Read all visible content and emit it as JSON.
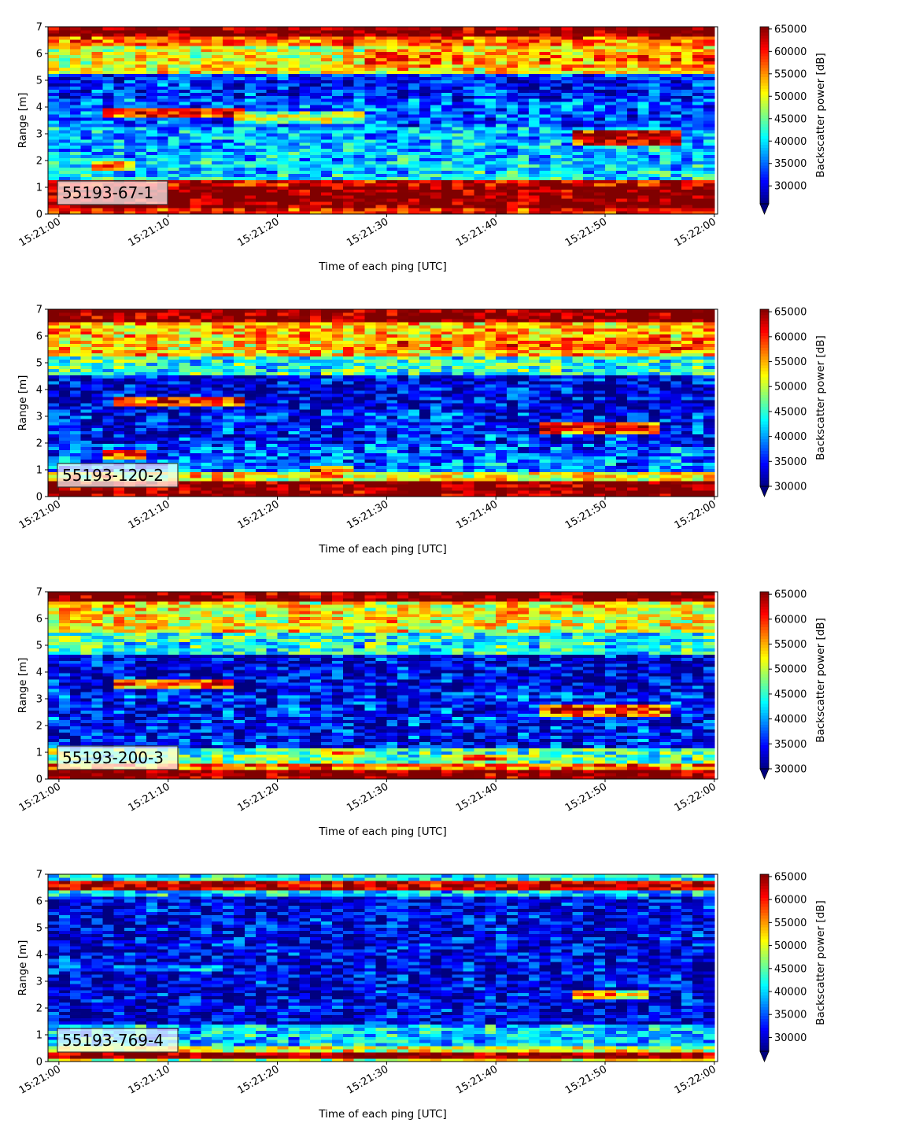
{
  "colors": {
    "colormap": "jet",
    "axis": "#000000",
    "label_box_edge": "#333333"
  },
  "chart_data": [
    {
      "type": "heatmap",
      "panel_label": "55193-67-1",
      "xlabel": "Time of each ping [UTC]",
      "ylabel": "Range [m]",
      "colorbar_label": "Backscatter power [dB]",
      "x_ticks": [
        "15:21:00",
        "15:21:10",
        "15:21:20",
        "15:21:30",
        "15:21:40",
        "15:21:50",
        "15:22:00"
      ],
      "y_ticks": [
        "0",
        "1",
        "2",
        "3",
        "4",
        "5",
        "6",
        "7"
      ],
      "colorbar_ticks": [
        "30000",
        "35000",
        "40000",
        "45000",
        "50000",
        "55000",
        "60000",
        "65000"
      ],
      "xlim": [
        "15:20:59",
        "15:22:00.3"
      ],
      "ylim": [
        0,
        7
      ],
      "clim": [
        26000,
        65500
      ],
      "colorbar_extend": "min",
      "pings": 61,
      "bins": 60,
      "features": [
        {
          "kind": "band",
          "r0": 0.0,
          "r1": 0.2,
          "level": 60000
        },
        {
          "kind": "band",
          "r0": 0.2,
          "r1": 1.1,
          "level": 66000
        },
        {
          "kind": "band",
          "r0": 1.1,
          "r1": 1.3,
          "level": 61000
        },
        {
          "kind": "band",
          "r0": 1.3,
          "r1": 2.0,
          "level": 40000
        },
        {
          "kind": "band",
          "r0": 2.0,
          "r1": 3.3,
          "level": 38000
        },
        {
          "kind": "band",
          "r0": 3.3,
          "r1": 4.3,
          "level": 34000
        },
        {
          "kind": "band",
          "r0": 4.3,
          "r1": 5.3,
          "level": 32000
        },
        {
          "kind": "band",
          "r0": 5.3,
          "r1": 6.3,
          "level": 50000
        },
        {
          "kind": "band",
          "r0": 6.3,
          "r1": 6.7,
          "level": 57000
        },
        {
          "kind": "band",
          "r0": 6.7,
          "r1": 7.0,
          "level": 66000
        },
        {
          "kind": "streak",
          "t0": 5,
          "t1": 17,
          "r": 3.8,
          "w": 0.22,
          "level": 62000
        },
        {
          "kind": "streak",
          "t0": 17,
          "t1": 28,
          "r": 3.6,
          "w": 0.2,
          "level": 50000
        },
        {
          "kind": "streak",
          "t0": 4,
          "t1": 7,
          "r": 1.8,
          "w": 0.2,
          "level": 58000
        },
        {
          "kind": "streak",
          "t0": 48,
          "t1": 57,
          "r": 2.9,
          "w": 0.3,
          "level": 66000
        },
        {
          "kind": "streak",
          "t0": 29,
          "t1": 61,
          "r": 5.8,
          "w": 0.45,
          "level": 57000
        }
      ]
    },
    {
      "type": "heatmap",
      "panel_label": "55193-120-2",
      "xlabel": "Time of each ping [UTC]",
      "ylabel": "Range [m]",
      "colorbar_label": "Backscatter power [dB]",
      "x_ticks": [
        "15:21:00",
        "15:21:10",
        "15:21:20",
        "15:21:30",
        "15:21:40",
        "15:21:50",
        "15:22:00"
      ],
      "y_ticks": [
        "0",
        "1",
        "2",
        "3",
        "4",
        "5",
        "6",
        "7"
      ],
      "colorbar_ticks": [
        "30000",
        "35000",
        "40000",
        "45000",
        "50000",
        "55000",
        "60000",
        "65000"
      ],
      "xlim": [
        "15:20:59",
        "15:22:00.3"
      ],
      "ylim": [
        0,
        7
      ],
      "clim": [
        30000,
        65500
      ],
      "colorbar_extend": "min",
      "pings": 61,
      "bins": 60,
      "features": [
        {
          "kind": "band",
          "r0": 0.0,
          "r1": 0.6,
          "level": 66000
        },
        {
          "kind": "band",
          "r0": 0.6,
          "r1": 0.9,
          "level": 52000
        },
        {
          "kind": "band",
          "r0": 0.9,
          "r1": 2.0,
          "level": 38000
        },
        {
          "kind": "band",
          "r0": 2.0,
          "r1": 3.3,
          "level": 35000
        },
        {
          "kind": "band",
          "r0": 3.3,
          "r1": 4.5,
          "level": 33000
        },
        {
          "kind": "band",
          "r0": 4.5,
          "r1": 5.3,
          "level": 44000
        },
        {
          "kind": "band",
          "r0": 5.3,
          "r1": 6.5,
          "level": 54000
        },
        {
          "kind": "band",
          "r0": 6.5,
          "r1": 7.0,
          "level": 66000
        },
        {
          "kind": "streak",
          "t0": 6,
          "t1": 17,
          "r": 3.6,
          "w": 0.18,
          "level": 62000
        },
        {
          "kind": "streak",
          "t0": 5,
          "t1": 8,
          "r": 1.6,
          "w": 0.18,
          "level": 60000
        },
        {
          "kind": "streak",
          "t0": 45,
          "t1": 55,
          "r": 2.6,
          "w": 0.22,
          "level": 63000
        },
        {
          "kind": "streak",
          "t0": 24,
          "t1": 27,
          "r": 1.0,
          "w": 0.15,
          "level": 60000
        },
        {
          "kind": "streak",
          "t0": 32,
          "t1": 61,
          "r": 5.7,
          "w": 0.5,
          "level": 58000
        }
      ]
    },
    {
      "type": "heatmap",
      "panel_label": "55193-200-3",
      "xlabel": "Time of each ping [UTC]",
      "ylabel": "Range [m]",
      "colorbar_label": "Backscatter power [dB]",
      "x_ticks": [
        "15:21:00",
        "15:21:10",
        "15:21:20",
        "15:21:30",
        "15:21:40",
        "15:21:50",
        "15:22:00"
      ],
      "y_ticks": [
        "0",
        "1",
        "2",
        "3",
        "4",
        "5",
        "6",
        "7"
      ],
      "colorbar_ticks": [
        "30000",
        "35000",
        "40000",
        "45000",
        "50000",
        "55000",
        "60000",
        "65000"
      ],
      "xlim": [
        "15:20:59",
        "15:22:00.3"
      ],
      "ylim": [
        0,
        7
      ],
      "clim": [
        30000,
        65500
      ],
      "colorbar_extend": "min",
      "pings": 61,
      "bins": 60,
      "features": [
        {
          "kind": "band",
          "r0": 0.0,
          "r1": 0.3,
          "level": 66000
        },
        {
          "kind": "band",
          "r0": 0.3,
          "r1": 0.6,
          "level": 57000
        },
        {
          "kind": "band",
          "r0": 0.6,
          "r1": 1.2,
          "level": 46000
        },
        {
          "kind": "band",
          "r0": 1.2,
          "r1": 3.3,
          "level": 35000
        },
        {
          "kind": "band",
          "r0": 3.3,
          "r1": 4.7,
          "level": 33000
        },
        {
          "kind": "band",
          "r0": 4.7,
          "r1": 5.5,
          "level": 44000
        },
        {
          "kind": "band",
          "r0": 5.5,
          "r1": 6.6,
          "level": 52000
        },
        {
          "kind": "band",
          "r0": 6.6,
          "r1": 7.0,
          "level": 66000
        },
        {
          "kind": "streak",
          "t0": 6,
          "t1": 16,
          "r": 3.6,
          "w": 0.18,
          "level": 60000
        },
        {
          "kind": "streak",
          "t0": 45,
          "t1": 56,
          "r": 2.6,
          "w": 0.22,
          "level": 63000
        },
        {
          "kind": "streak",
          "t0": 25,
          "t1": 28,
          "r": 1.0,
          "w": 0.15,
          "level": 58000
        },
        {
          "kind": "streak",
          "t0": 38,
          "t1": 41,
          "r": 0.8,
          "w": 0.15,
          "level": 60000
        }
      ]
    },
    {
      "type": "heatmap",
      "panel_label": "55193-769-4",
      "xlabel": "Time of each ping [UTC]",
      "ylabel": "Range [m]",
      "colorbar_label": "Backscatter power [dB]",
      "x_ticks": [
        "15:21:00",
        "15:21:10",
        "15:21:20",
        "15:21:30",
        "15:21:40",
        "15:21:50",
        "15:22:00"
      ],
      "y_ticks": [
        "0",
        "1",
        "2",
        "3",
        "4",
        "5",
        "6",
        "7"
      ],
      "colorbar_ticks": [
        "30000",
        "35000",
        "40000",
        "45000",
        "50000",
        "55000",
        "60000",
        "65000"
      ],
      "xlim": [
        "15:20:59",
        "15:22:00.3"
      ],
      "ylim": [
        0,
        7
      ],
      "clim": [
        27000,
        65500
      ],
      "colorbar_extend": "min",
      "pings": 61,
      "bins": 60,
      "features": [
        {
          "kind": "band",
          "r0": 0.0,
          "r1": 0.1,
          "level": 50000
        },
        {
          "kind": "band",
          "r0": 0.1,
          "r1": 0.3,
          "level": 66000
        },
        {
          "kind": "band",
          "r0": 0.3,
          "r1": 0.6,
          "level": 50000
        },
        {
          "kind": "band",
          "r0": 0.6,
          "r1": 1.4,
          "level": 40000
        },
        {
          "kind": "band",
          "r0": 1.4,
          "r1": 6.2,
          "level": 31000
        },
        {
          "kind": "band",
          "r0": 6.2,
          "r1": 6.45,
          "level": 40000
        },
        {
          "kind": "band",
          "r0": 6.45,
          "r1": 6.8,
          "level": 63000
        },
        {
          "kind": "band",
          "r0": 6.8,
          "r1": 7.0,
          "level": 42000
        },
        {
          "kind": "streak",
          "t0": 48,
          "t1": 54,
          "r": 2.5,
          "w": 0.18,
          "level": 55000
        },
        {
          "kind": "streak",
          "t0": 6,
          "t1": 15,
          "r": 3.5,
          "w": 0.15,
          "level": 40000
        }
      ]
    }
  ]
}
